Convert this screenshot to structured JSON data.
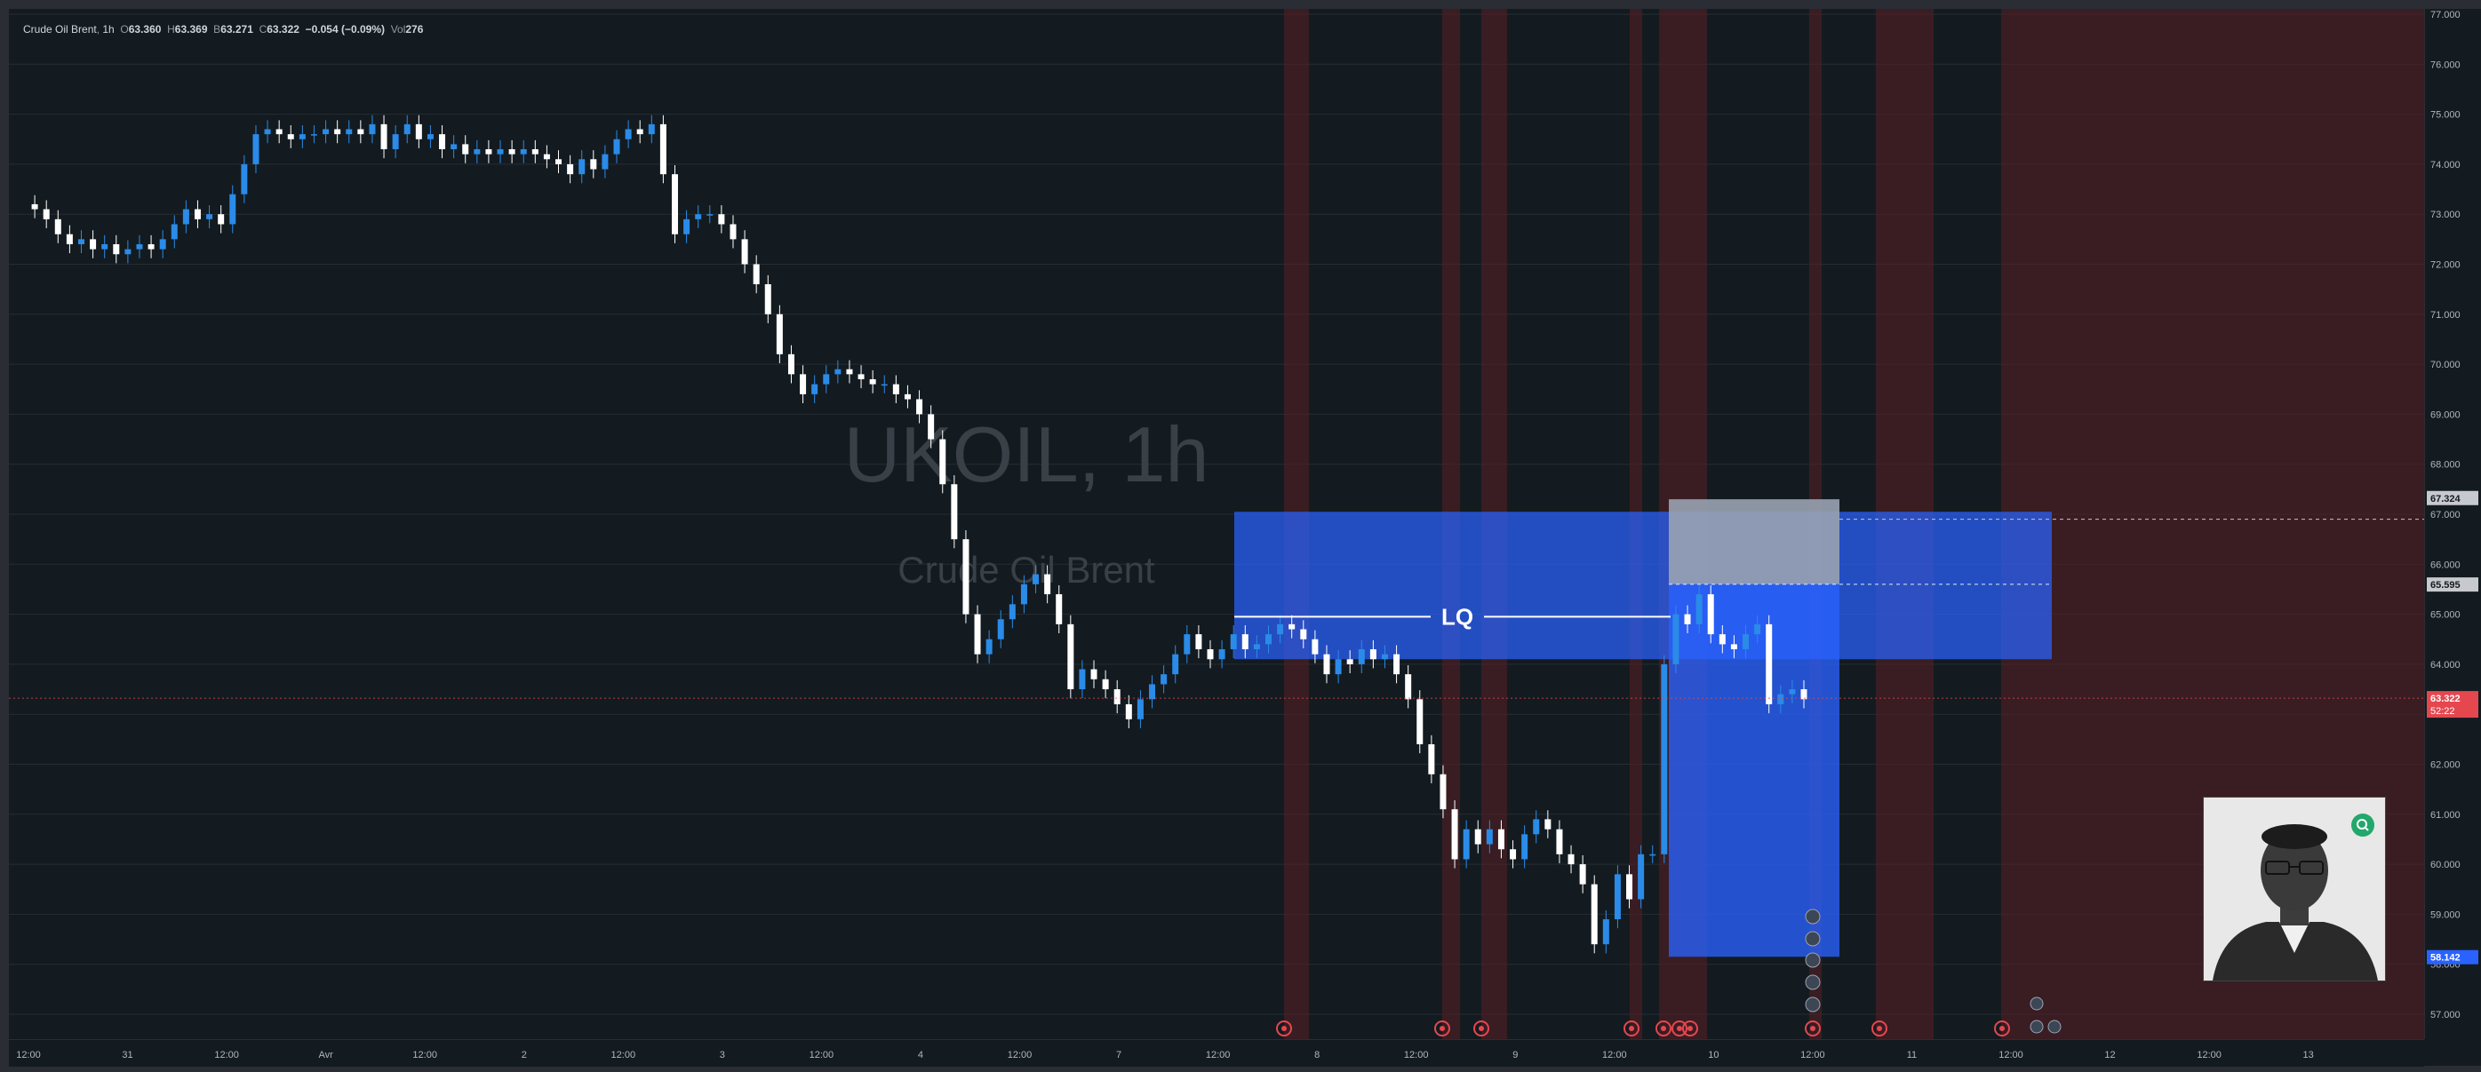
{
  "symbol": {
    "name": "Crude Oil Brent",
    "interval": "1h",
    "ohlc": {
      "o": "63.360",
      "h": "63.369",
      "b": "63.271",
      "c": "63.322"
    },
    "change": "−0.054 (−0.09%)",
    "vol": "276",
    "watermark_ticker": "UKOIL, 1h",
    "watermark_name": "Crude Oil Brent"
  },
  "price_tags": {
    "grey": "67.324",
    "grey2": "65.595",
    "current": "63.322",
    "countdown": "52:22",
    "blue": "58.142"
  },
  "annotation": {
    "lq_label": "LQ"
  },
  "colors": {
    "background": "#131b20",
    "grid": "#262c33",
    "candle_up": "#2a8be8",
    "candle_down": "#ffffff",
    "zone_blue": "#2962ff",
    "session_red": "#5a1f24"
  },
  "chart_data": {
    "type": "candlestick",
    "title": "UKOIL, 1h",
    "ylim": [
      56.5,
      77.2
    ],
    "y_ticks": [
      "57.000",
      "58.000",
      "59.000",
      "60.000",
      "61.000",
      "62.000",
      "63.000",
      "64.000",
      "65.000",
      "66.000",
      "67.000",
      "68.000",
      "69.000",
      "70.000",
      "71.000",
      "72.000",
      "73.000",
      "74.000",
      "75.000",
      "76.000",
      "77.000"
    ],
    "x_ticks": [
      "12:00",
      "31",
      "12:00",
      "Avr",
      "12:00",
      "2",
      "12:00",
      "3",
      "12:00",
      "4",
      "12:00",
      "7",
      "12:00",
      "8",
      "12:00",
      "9",
      "12:00",
      "10",
      "12:00",
      "11",
      "12:00",
      "12",
      "12:00",
      "13"
    ],
    "close_path": [
      73.2,
      73.1,
      72.9,
      72.6,
      72.4,
      72.5,
      72.3,
      72.4,
      72.2,
      72.3,
      72.4,
      72.3,
      72.5,
      72.8,
      73.1,
      72.9,
      73.0,
      72.8,
      73.4,
      74.0,
      74.6,
      74.7,
      74.6,
      74.5,
      74.6,
      74.6,
      74.7,
      74.6,
      74.7,
      74.6,
      74.8,
      74.3,
      74.6,
      74.8,
      74.5,
      74.6,
      74.3,
      74.4,
      74.2,
      74.3,
      74.2,
      74.3,
      74.2,
      74.3,
      74.2,
      74.1,
      74.0,
      73.8,
      74.1,
      73.9,
      74.2,
      74.5,
      74.7,
      74.6,
      74.8,
      73.8,
      72.6,
      72.9,
      73.0,
      73.0,
      72.8,
      72.5,
      72.0,
      71.6,
      71.0,
      70.2,
      69.8,
      69.4,
      69.6,
      69.8,
      69.9,
      69.8,
      69.7,
      69.6,
      69.6,
      69.4,
      69.3,
      69.0,
      68.5,
      67.6,
      66.5,
      65.0,
      64.2,
      64.5,
      64.9,
      65.2,
      65.6,
      65.8,
      65.4,
      64.8,
      63.5,
      63.9,
      63.7,
      63.5,
      63.2,
      62.9,
      63.3,
      63.6,
      63.8,
      64.2,
      64.6,
      64.3,
      64.1,
      64.3,
      64.6,
      64.3,
      64.4,
      64.6,
      64.8,
      64.7,
      64.5,
      64.2,
      63.8,
      64.1,
      64.0,
      64.3,
      64.1,
      64.2,
      63.8,
      63.3,
      62.4,
      61.8,
      61.1,
      60.1,
      60.7,
      60.4,
      60.7,
      60.3,
      60.1,
      60.6,
      60.9,
      60.7,
      60.2,
      60.0,
      59.6,
      58.4,
      58.9,
      59.8,
      59.3,
      60.2,
      60.2,
      64.0,
      65.0,
      64.8,
      65.4,
      64.6,
      64.4,
      64.3,
      64.6,
      64.8,
      63.2,
      63.4,
      63.5,
      63.3
    ]
  }
}
